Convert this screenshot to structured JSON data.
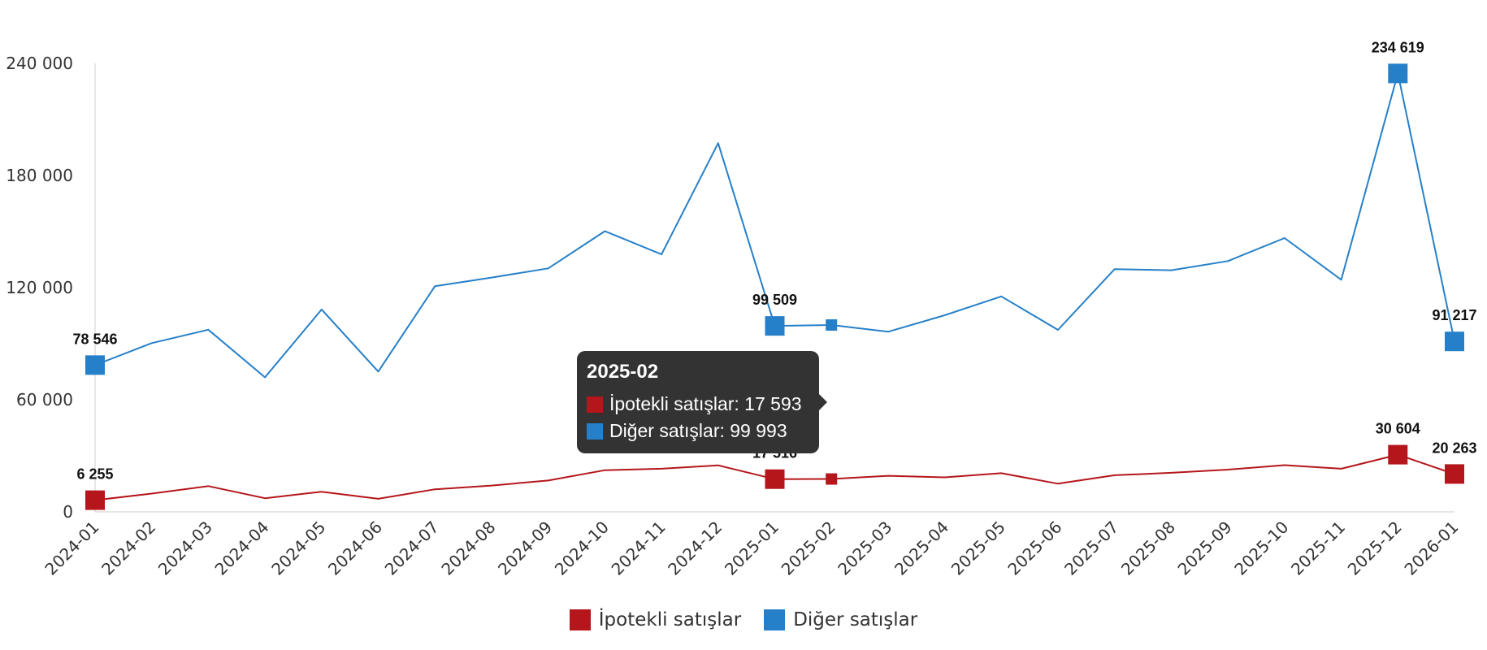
{
  "chart_data": {
    "type": "line",
    "x": [
      "2024-01",
      "2024-02",
      "2024-03",
      "2024-04",
      "2024-05",
      "2024-06",
      "2024-07",
      "2024-08",
      "2024-09",
      "2024-10",
      "2024-11",
      "2024-12",
      "2025-01",
      "2025-02",
      "2025-03",
      "2025-04",
      "2025-05",
      "2025-06",
      "2025-07",
      "2025-08",
      "2025-09",
      "2025-10",
      "2025-11",
      "2025-12",
      "2026-01"
    ],
    "series": [
      {
        "name": "İpotekli satışlar",
        "color": "#b5161b",
        "values": [
          6255,
          9800,
          13800,
          7300,
          10800,
          7000,
          12100,
          14100,
          16800,
          22300,
          23100,
          24900,
          17516,
          17593,
          19300,
          18500,
          20700,
          15100,
          19600,
          20900,
          22600,
          25000,
          23100,
          30604,
          20263
        ],
        "labels": [
          {
            "x": "2024-01",
            "text": "6 255"
          },
          {
            "x": "2025-01",
            "text": "17 516"
          },
          {
            "x": "2025-12",
            "text": "30 604"
          },
          {
            "x": "2026-01",
            "text": "20 263"
          }
        ]
      },
      {
        "name": "Diğer satışlar",
        "color": "#2680c9",
        "values": [
          78546,
          90300,
          97500,
          72000,
          108300,
          75100,
          120800,
          125400,
          130300,
          150200,
          137800,
          197300,
          99509,
          99993,
          96400,
          105200,
          115300,
          97400,
          129900,
          129300,
          134200,
          146500,
          124200,
          234619,
          91217
        ],
        "labels": [
          {
            "x": "2024-01",
            "text": "78 546"
          },
          {
            "x": "2025-01",
            "text": "99 509"
          },
          {
            "x": "2025-12",
            "text": "234 619"
          },
          {
            "x": "2026-01",
            "text": "91 217"
          }
        ]
      }
    ],
    "ylim": [
      0,
      240000
    ],
    "yticks": [
      0,
      60000,
      120000,
      180000,
      240000
    ],
    "ytick_labels": [
      "0",
      "60 000",
      "120 000",
      "180 000",
      "240 000"
    ],
    "xlabel": "",
    "ylabel": "",
    "legend_position": "bottom",
    "highlighted": "2025-02"
  },
  "tooltip": {
    "title": "2025-02",
    "rows": [
      {
        "label": "İpotekli satışlar: 17 593",
        "color": "#b5161b"
      },
      {
        "label": "Diğer satışlar: 99 993",
        "color": "#2680c9"
      }
    ]
  }
}
